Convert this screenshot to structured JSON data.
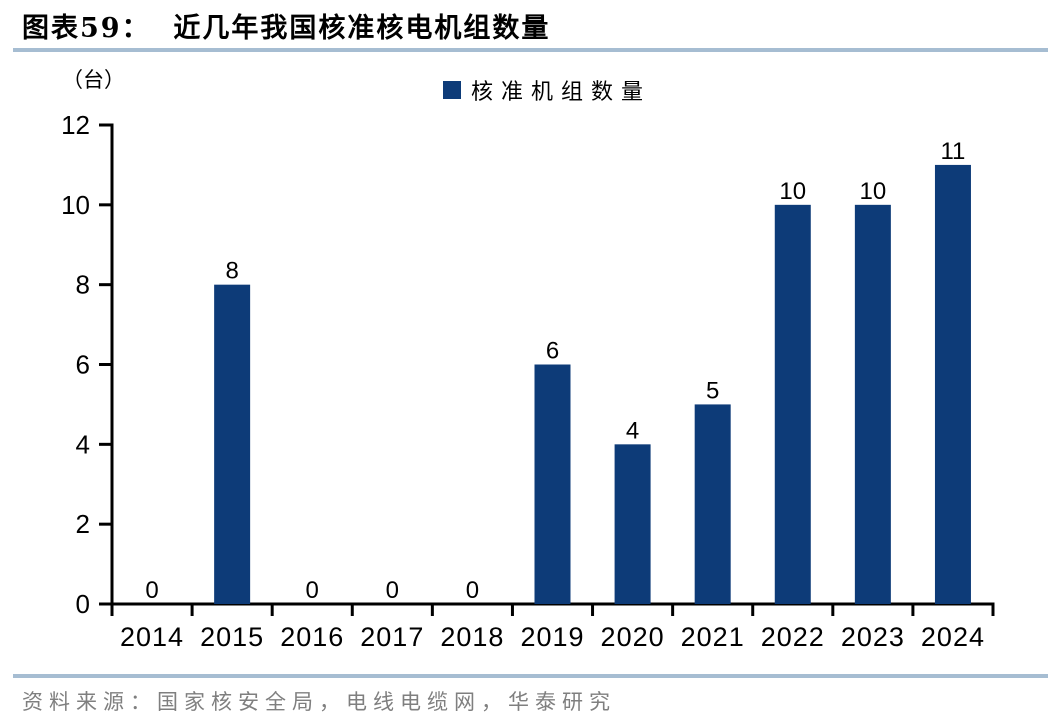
{
  "figure": {
    "title": "图表59：  近几年我国核准核电机组数量",
    "source": "资料来源：国家核安全局，电线电缆网，华泰研究"
  },
  "chart_data": {
    "type": "bar",
    "title": "近几年我国核准核电机组数量",
    "unit_label": "（台）",
    "legend": [
      "核准机组数量"
    ],
    "legend_position": "top-center",
    "categories": [
      "2014",
      "2015",
      "2016",
      "2017",
      "2018",
      "2019",
      "2020",
      "2021",
      "2022",
      "2023",
      "2024"
    ],
    "values": [
      0,
      8,
      0,
      0,
      0,
      6,
      4,
      5,
      10,
      10,
      11
    ],
    "xlabel": "",
    "ylabel": "（台）",
    "ylim": [
      0,
      12
    ],
    "yticks": [
      0,
      2,
      4,
      6,
      8,
      10,
      12
    ],
    "grid": false,
    "value_labels": true,
    "bar_color": "#0D3B78"
  },
  "colors": {
    "bar": "#0D3B78",
    "divider": "#A6BDD2",
    "source_text": "#7F7F7F",
    "axis": "#000000"
  }
}
